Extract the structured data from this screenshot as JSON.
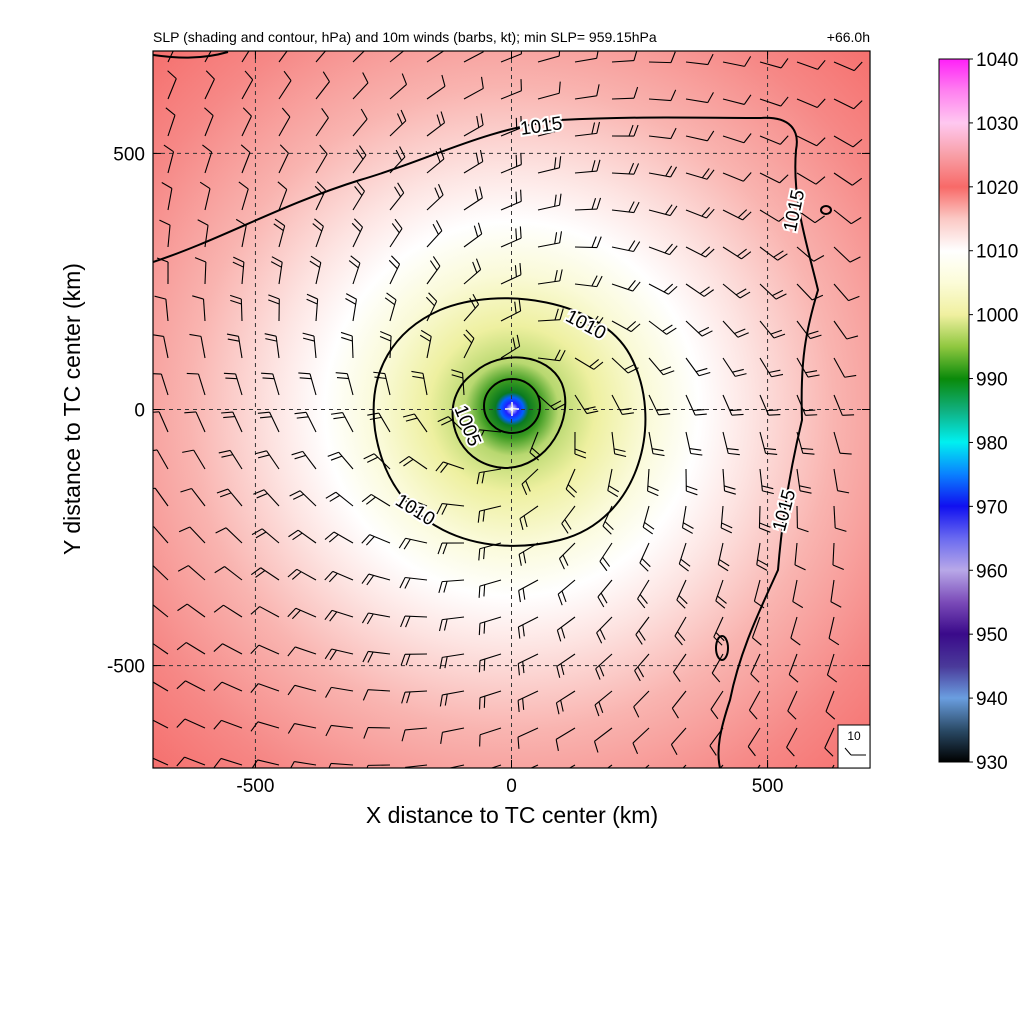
{
  "chart_data": {
    "type": "heatmap",
    "title": "SLP (shading and contour, hPa) and 10m winds (barbs, kt); min SLP= 959.15hPa",
    "forecast_hour": "+66.0h",
    "xlabel": "X distance to TC center (km)",
    "ylabel": "Y distance to TC center (km)",
    "xlim": [
      -700,
      700
    ],
    "ylim": [
      -700,
      700
    ],
    "xticks": [
      -500,
      0,
      500
    ],
    "yticks": [
      -500,
      0,
      500
    ],
    "xtick_labels": [
      "-500",
      "0",
      "500"
    ],
    "ytick_labels": [
      "-500",
      "0",
      "500"
    ],
    "grid": "dashed",
    "min_slp_hpa": 959.15,
    "colorbar": {
      "min": 930,
      "max": 1040,
      "ticks": [
        930,
        940,
        950,
        960,
        970,
        980,
        990,
        1000,
        1010,
        1020,
        1030,
        1040
      ],
      "tick_labels": [
        "930",
        "940",
        "950",
        "960",
        "970",
        "980",
        "990",
        "1000",
        "1010",
        "1020",
        "1030",
        "1040"
      ]
    },
    "contours": [
      {
        "level": 1000,
        "label": ""
      },
      {
        "level": 1005,
        "label": "1005"
      },
      {
        "level": 1010,
        "label": "1010"
      },
      {
        "level": 1015,
        "label": "1015"
      }
    ],
    "wind_reference": {
      "value": 10,
      "label": "10",
      "unit": "kt"
    }
  },
  "colors": {
    "scale": [
      [
        930,
        "#000000"
      ],
      [
        935,
        "#2a4a66"
      ],
      [
        940,
        "#6a9ee0"
      ],
      [
        945,
        "#4a3a9a"
      ],
      [
        950,
        "#3a0a8a"
      ],
      [
        955,
        "#7a4ab8"
      ],
      [
        960,
        "#b8a8e8"
      ],
      [
        965,
        "#6a6af0"
      ],
      [
        970,
        "#1010f0"
      ],
      [
        975,
        "#0a80ff"
      ],
      [
        980,
        "#00f0f0"
      ],
      [
        985,
        "#10b080"
      ],
      [
        990,
        "#0a8a0a"
      ],
      [
        995,
        "#90c840"
      ],
      [
        1000,
        "#f0f0a0"
      ],
      [
        1005,
        "#fcfcd8"
      ],
      [
        1010,
        "#ffffff"
      ],
      [
        1015,
        "#fbc8c4"
      ],
      [
        1020,
        "#f86a68"
      ],
      [
        1025,
        "#f8a0a8"
      ],
      [
        1030,
        "#ffc8f0"
      ],
      [
        1035,
        "#ff80f0"
      ],
      [
        1040,
        "#ff20f8"
      ]
    ]
  }
}
